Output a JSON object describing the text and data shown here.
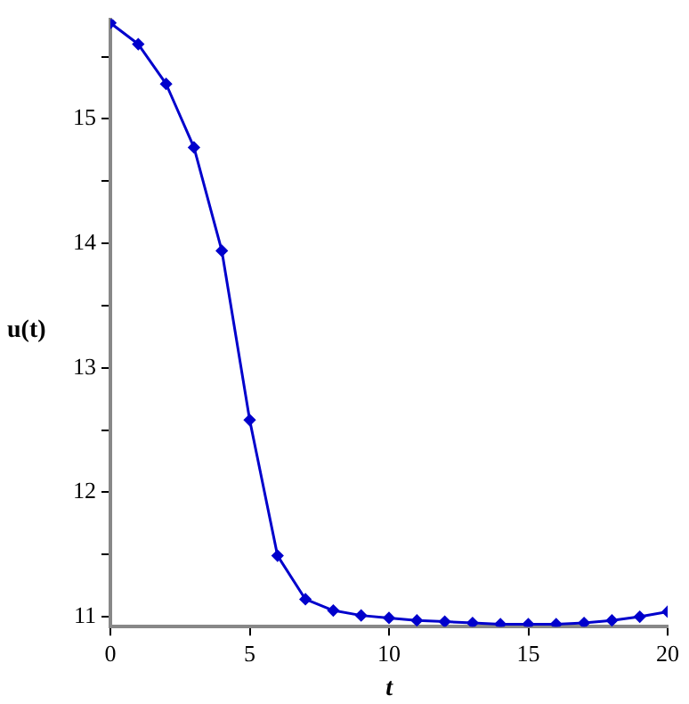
{
  "chart_data": {
    "type": "line",
    "xlabel": "t",
    "ylabel": "u(t)",
    "x": [
      0,
      1,
      2,
      3,
      4,
      5,
      6,
      7,
      8,
      9,
      10,
      11,
      12,
      13,
      14,
      15,
      16,
      17,
      18,
      19,
      20
    ],
    "series": [
      {
        "color": "#0000cc",
        "values": [
          15.77,
          15.6,
          15.28,
          14.77,
          13.94,
          12.58,
          11.49,
          11.14,
          11.05,
          11.01,
          10.99,
          10.97,
          10.96,
          10.95,
          10.94,
          10.94,
          10.94,
          10.95,
          10.97,
          11.0,
          11.04
        ]
      }
    ],
    "xlim": [
      0,
      20
    ],
    "xticks": [
      0,
      5,
      10,
      15,
      20
    ],
    "ylim": [
      10.92,
      15.8
    ],
    "yticks": [
      11,
      {
        "value": 11.5,
        "label": null
      },
      12,
      {
        "value": 12.5,
        "label": null
      },
      13,
      {
        "value": 13.5,
        "label": null
      },
      14,
      {
        "value": 14.5,
        "label": null
      },
      15,
      {
        "value": 15.5,
        "label": null
      }
    ],
    "grid": false,
    "legend": false,
    "marker": "diamond",
    "line_style": "solid"
  }
}
